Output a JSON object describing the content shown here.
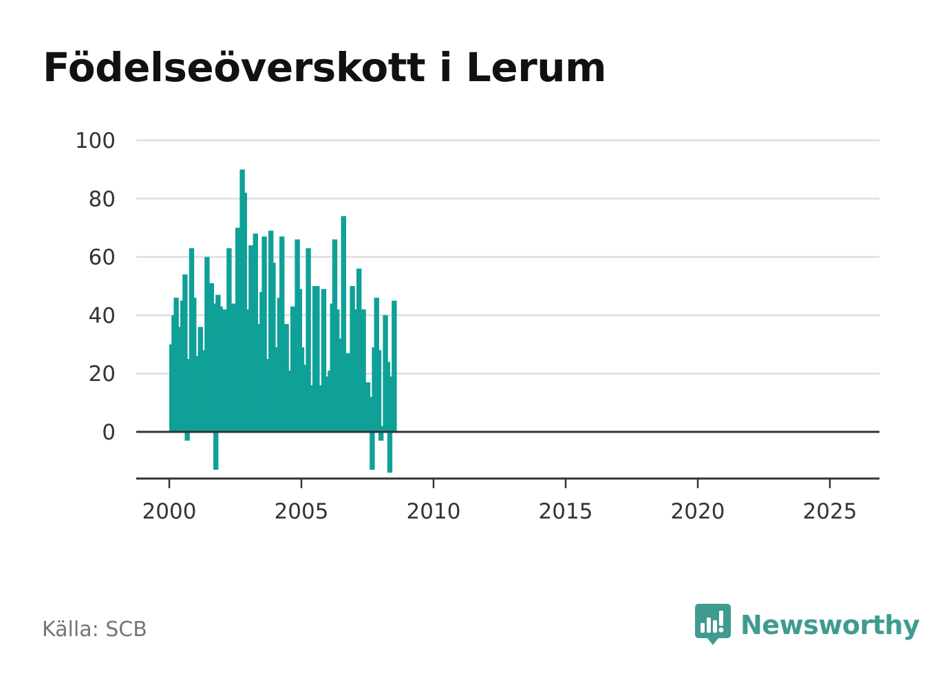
{
  "title": "Födelseöverskott i Lerum",
  "source": "Källa: SCB",
  "brand": {
    "name": "Newsworthy",
    "icon": "bar-chart-speech-bubble-icon",
    "color": "#3f9b8f"
  },
  "colors": {
    "bar": "#0fa098",
    "grid": "#dddddd",
    "axis": "#333333"
  },
  "chart_data": {
    "type": "bar",
    "title": "Födelseöverskott i Lerum",
    "xlabel": "",
    "ylabel": "",
    "ylim": [
      -16,
      100
    ],
    "yticks": [
      0,
      20,
      40,
      60,
      80,
      100
    ],
    "xticks": [
      2000,
      2005,
      2010,
      2015,
      2020,
      2025
    ],
    "xlim": [
      1999.2,
      2026.8
    ],
    "grid": true,
    "legend": "none",
    "x_unit": "decimal year (monthly bars)",
    "x_start": "2000-01",
    "values": [
      30,
      40,
      46,
      4,
      36,
      45,
      54,
      -3,
      25,
      63,
      46,
      26,
      23,
      36,
      28,
      21,
      60,
      48,
      51,
      44,
      -13,
      47,
      43,
      30,
      42,
      38,
      63,
      29,
      44,
      41,
      70,
      3,
      90,
      82,
      39,
      42,
      64,
      35,
      68,
      34,
      37,
      48,
      67,
      21,
      25,
      69,
      58,
      29,
      21,
      46,
      67,
      26,
      37,
      21,
      21,
      43,
      20,
      66,
      49,
      29,
      8,
      23,
      63,
      16,
      9,
      50,
      50,
      2,
      16,
      49,
      18,
      19,
      21,
      44,
      66,
      42,
      13,
      32,
      74,
      3,
      27,
      25,
      50,
      8,
      42,
      56,
      42,
      42,
      12,
      17,
      12,
      -13,
      29,
      46,
      28,
      -3,
      2,
      40,
      24,
      -14,
      19,
      45
    ]
  }
}
